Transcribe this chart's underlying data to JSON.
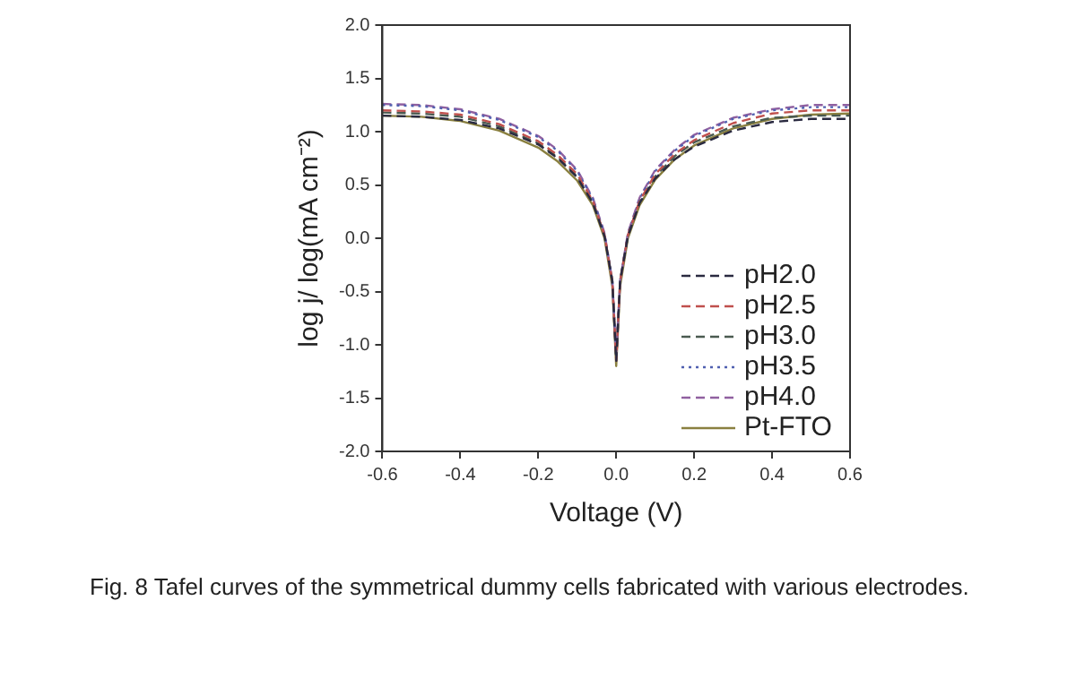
{
  "chart_data": {
    "type": "line",
    "xlabel": "Voltage (V)",
    "ylabel": "log j/ log(mA cm⁻²)",
    "x": [
      -0.6,
      -0.5,
      -0.4,
      -0.3,
      -0.2,
      -0.15,
      -0.1,
      -0.06,
      -0.03,
      -0.01,
      0,
      0.01,
      0.03,
      0.06,
      0.1,
      0.15,
      0.2,
      0.3,
      0.4,
      0.5,
      0.6
    ],
    "xlim": [
      -0.6,
      0.6
    ],
    "xticks": [
      {
        "value": -0.6,
        "label": "-0.6"
      },
      {
        "value": -0.4,
        "label": "-0.4"
      },
      {
        "value": -0.2,
        "label": "-0.2"
      },
      {
        "value": 0,
        "label": "0.0"
      },
      {
        "value": 0.2,
        "label": "0.2"
      },
      {
        "value": 0.4,
        "label": "0.4"
      },
      {
        "value": 0.6,
        "label": "0.6"
      }
    ],
    "ylim": [
      -2,
      2
    ],
    "yticks": [
      {
        "value": -2,
        "label": "-2.0"
      },
      {
        "value": -1.5,
        "label": "-1.5"
      },
      {
        "value": -1,
        "label": "-1.0"
      },
      {
        "value": -0.5,
        "label": "-0.5"
      },
      {
        "value": 0,
        "label": "0.0"
      },
      {
        "value": 0.5,
        "label": "0.5"
      },
      {
        "value": 1,
        "label": "1.0"
      },
      {
        "value": 1.5,
        "label": "1.5"
      },
      {
        "value": 2,
        "label": "2.0"
      }
    ],
    "grid": false,
    "legend": "bottom right",
    "marker": "none",
    "series": [
      {
        "name": "pH2.0",
        "color": "#2a2a40",
        "line_style": "dashed",
        "values": [
          1.15,
          1.14,
          1.11,
          1.03,
          0.88,
          0.75,
          0.57,
          0.33,
          0.02,
          -0.4,
          -1.15,
          -0.4,
          0.02,
          0.33,
          0.56,
          0.74,
          0.86,
          1.01,
          1.09,
          1.12,
          1.12
        ]
      },
      {
        "name": "pH2.5",
        "color": "#c0504d",
        "line_style": "dashed",
        "values": [
          1.2,
          1.19,
          1.16,
          1.07,
          0.91,
          0.78,
          0.6,
          0.35,
          0.03,
          -0.4,
          -1.15,
          -0.4,
          0.03,
          0.35,
          0.6,
          0.79,
          0.92,
          1.08,
          1.17,
          1.2,
          1.2
        ]
      },
      {
        "name": "pH3.0",
        "color": "#4a5a50",
        "line_style": "dashed",
        "values": [
          1.18,
          1.17,
          1.14,
          1.05,
          0.89,
          0.76,
          0.58,
          0.34,
          0.02,
          -0.4,
          -1.15,
          -0.4,
          0.02,
          0.34,
          0.58,
          0.77,
          0.9,
          1.05,
          1.13,
          1.15,
          1.15
        ]
      },
      {
        "name": "pH3.5",
        "color": "#5060b0",
        "line_style": "dotted",
        "values": [
          1.25,
          1.24,
          1.2,
          1.11,
          0.95,
          0.82,
          0.63,
          0.37,
          0.04,
          -0.4,
          -1.1,
          -0.4,
          0.04,
          0.37,
          0.63,
          0.82,
          0.96,
          1.12,
          1.2,
          1.23,
          1.23
        ]
      },
      {
        "name": "pH4.0",
        "color": "#9060a0",
        "line_style": "dashed",
        "values": [
          1.26,
          1.25,
          1.21,
          1.12,
          0.96,
          0.83,
          0.64,
          0.38,
          0.05,
          -0.4,
          -1.1,
          -0.4,
          0.05,
          0.38,
          0.64,
          0.83,
          0.97,
          1.13,
          1.21,
          1.25,
          1.25
        ]
      },
      {
        "name": "Pt-FTO",
        "color": "#8a8040",
        "line_style": "solid",
        "values": [
          1.15,
          1.14,
          1.1,
          1.01,
          0.85,
          0.72,
          0.54,
          0.31,
          0.0,
          -0.45,
          -1.2,
          -0.45,
          0.0,
          0.31,
          0.55,
          0.74,
          0.87,
          1.03,
          1.12,
          1.16,
          1.17
        ]
      }
    ],
    "annotations": [
      "Fig. 8 Tafel curves of the symmetrical dummy cells fabricated with various electrodes."
    ]
  }
}
